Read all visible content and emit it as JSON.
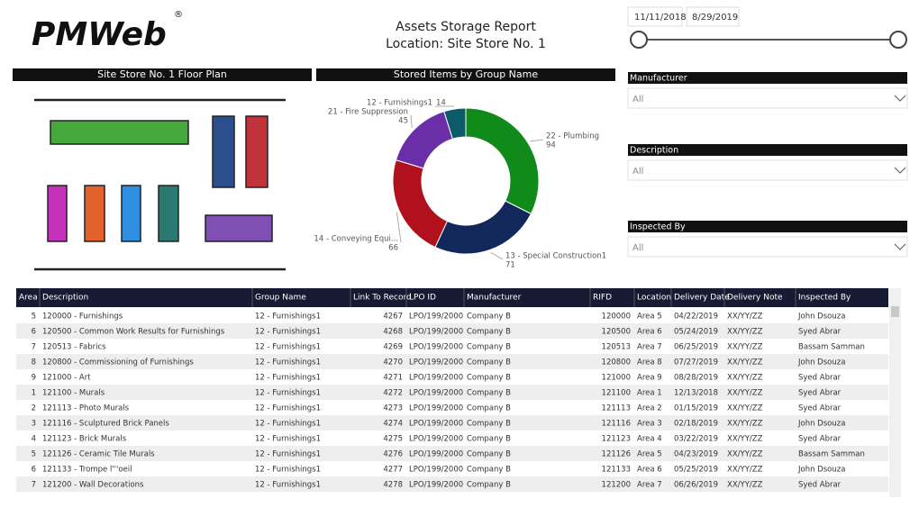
{
  "header": {
    "logo": "PMWeb",
    "logo_mark": "®",
    "title": "Assets Storage Report",
    "subtitle": "Location: Site Store No. 1"
  },
  "floor_plan": {
    "title": "Site Store No. 1 Floor Plan"
  },
  "chart_data": {
    "type": "pie",
    "title": "Stored Items by Group Name",
    "categories": [
      "22 - Plumbing",
      "13 - Special Construction1",
      "14 - Conveying Equi...",
      "21 - Fire Suppression",
      "12 - Furnishings1"
    ],
    "values": [
      94,
      71,
      66,
      45,
      14
    ],
    "colors": [
      "#118a1c",
      "#12275a",
      "#b0111c",
      "#6a2fa8",
      "#0d5b68"
    ]
  },
  "slicers": {
    "date_from": "11/11/2018",
    "date_to": "8/29/2019",
    "filters": [
      {
        "label": "Manufacturer",
        "value": "All"
      },
      {
        "label": "Description",
        "value": "All"
      },
      {
        "label": "Inspected By",
        "value": "All"
      }
    ]
  },
  "table": {
    "columns": [
      "Area",
      "Description",
      "Group Name",
      "Link To Record",
      "LPO ID",
      "Manufacturer",
      "RIFD",
      "Location",
      "Delivery Date",
      "Delivery Note",
      "Inspected By"
    ],
    "rows": [
      [
        5,
        "120000 - Furnishings",
        "12 - Furnishings1",
        4267,
        "LPO/199/2000",
        "Company B",
        120000,
        "Area 5",
        "04/22/2019",
        "XX/YY/ZZ",
        "John Dsouza"
      ],
      [
        6,
        "120500 - Common Work Results for Furnishings",
        "12 - Furnishings1",
        4268,
        "LPO/199/2000",
        "Company B",
        120500,
        "Area 6",
        "05/24/2019",
        "XX/YY/ZZ",
        "Syed Abrar"
      ],
      [
        7,
        "120513 - Fabrics",
        "12 - Furnishings1",
        4269,
        "LPO/199/2000",
        "Company B",
        120513,
        "Area 7",
        "06/25/2019",
        "XX/YY/ZZ",
        "Bassam Samman"
      ],
      [
        8,
        "120800 - Commissioning of Furnishings",
        "12 - Furnishings1",
        4270,
        "LPO/199/2000",
        "Company B",
        120800,
        "Area 8",
        "07/27/2019",
        "XX/YY/ZZ",
        "John Dsouza"
      ],
      [
        9,
        "121000 - Art",
        "12 - Furnishings1",
        4271,
        "LPO/199/2000",
        "Company B",
        121000,
        "Area 9",
        "08/28/2019",
        "XX/YY/ZZ",
        "Syed Abrar"
      ],
      [
        1,
        "121100 - Murals",
        "12 - Furnishings1",
        4272,
        "LPO/199/2000",
        "Company B",
        121100,
        "Area 1",
        "12/13/2018",
        "XX/YY/ZZ",
        "Syed Abrar"
      ],
      [
        2,
        "121113 - Photo Murals",
        "12 - Furnishings1",
        4273,
        "LPO/199/2000",
        "Company B",
        121113,
        "Area 2",
        "01/15/2019",
        "XX/YY/ZZ",
        "Syed Abrar"
      ],
      [
        3,
        "121116 - Sculptured Brick Panels",
        "12 - Furnishings1",
        4274,
        "LPO/199/2000",
        "Company B",
        121116,
        "Area 3",
        "02/18/2019",
        "XX/YY/ZZ",
        "John Dsouza"
      ],
      [
        4,
        "121123 - Brick Murals",
        "12 - Furnishings1",
        4275,
        "LPO/199/2000",
        "Company B",
        121123,
        "Area 4",
        "03/22/2019",
        "XX/YY/ZZ",
        "Syed Abrar"
      ],
      [
        5,
        "121126 - Ceramic Tile Murals",
        "12 - Furnishings1",
        4276,
        "LPO/199/2000",
        "Company B",
        121126,
        "Area 5",
        "04/23/2019",
        "XX/YY/ZZ",
        "Bassam Samman"
      ],
      [
        6,
        "121133 - Trompe l'''oeil",
        "12 - Furnishings1",
        4277,
        "LPO/199/2000",
        "Company B",
        121133,
        "Area 6",
        "05/25/2019",
        "XX/YY/ZZ",
        "John Dsouza"
      ],
      [
        7,
        "121200 - Wall Decorations",
        "12 - Furnishings1",
        4278,
        "LPO/199/2000",
        "Company B",
        121200,
        "Area 7",
        "06/26/2019",
        "XX/YY/ZZ",
        "Syed Abrar"
      ]
    ]
  }
}
